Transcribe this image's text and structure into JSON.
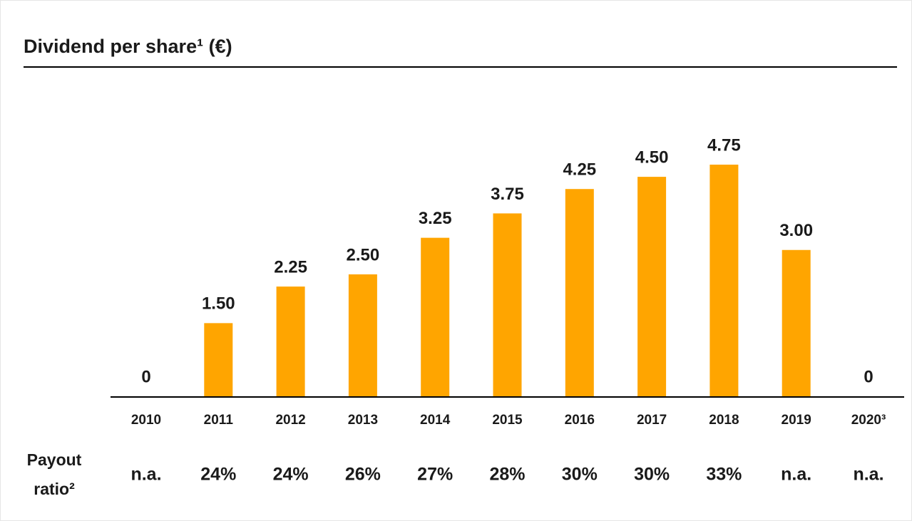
{
  "chart_data": {
    "type": "bar",
    "title": "Dividend per share¹ (€)",
    "categories": [
      "2010",
      "2011",
      "2012",
      "2013",
      "2014",
      "2015",
      "2016",
      "2017",
      "2018",
      "2019",
      "2020³"
    ],
    "values": [
      0,
      1.5,
      2.25,
      2.5,
      3.25,
      3.75,
      4.25,
      4.5,
      4.75,
      3.0,
      0
    ],
    "value_labels": [
      "0",
      "1.50",
      "2.25",
      "2.50",
      "3.25",
      "3.75",
      "4.25",
      "4.50",
      "4.75",
      "3.00",
      "0"
    ],
    "color": "#ffa500",
    "payout_ratio": {
      "label": [
        "Payout",
        "ratio²"
      ],
      "values": [
        "n.a.",
        "24%",
        "24%",
        "26%",
        "27%",
        "28%",
        "30%",
        "30%",
        "33%",
        "n.a.",
        "n.a."
      ]
    }
  }
}
